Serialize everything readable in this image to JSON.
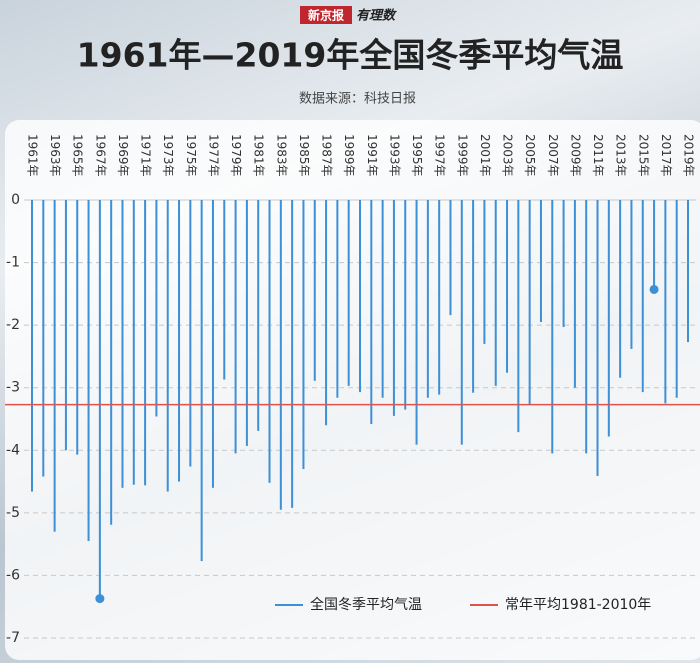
{
  "chart_data": {
    "type": "bar",
    "brand": "新京报",
    "brand_sub": "有理数",
    "title": "1961年—2019年全国冬季平均气温",
    "subtitle": "数据来源：科技日报",
    "categories": [
      "1961年",
      null,
      "1963年",
      null,
      "1965年",
      null,
      "1967年",
      null,
      "1969年",
      null,
      "1971年",
      null,
      "1973年",
      null,
      "1975年",
      null,
      "1977年",
      null,
      "1979年",
      null,
      "1981年",
      null,
      "1983年",
      null,
      "1985年",
      null,
      "1987年",
      null,
      "1989年",
      null,
      "1991年",
      null,
      "1993年",
      null,
      "1995年",
      null,
      "1997年",
      null,
      "1999年",
      null,
      "2001年",
      null,
      "2003年",
      null,
      "2005年",
      null,
      "2007年",
      null,
      "2009年",
      null,
      "2011年",
      null,
      "2013年",
      null,
      "2015年",
      null,
      "2017年",
      null,
      "2019年"
    ],
    "series": [
      {
        "name": "全国冬季平均气温",
        "color": "#3d8fd6",
        "values": [
          -4.66,
          -4.42,
          -5.3,
          -4.0,
          -4.07,
          -5.45,
          -6.37,
          -5.19,
          -4.6,
          -4.55,
          -4.56,
          -3.46,
          -4.66,
          -4.5,
          -4.26,
          -5.77,
          -4.6,
          -2.87,
          -4.05,
          -3.93,
          -3.69,
          -4.52,
          -4.95,
          -4.92,
          -4.3,
          -2.89,
          -3.6,
          -3.16,
          -2.97,
          -3.07,
          -3.58,
          -3.16,
          -3.45,
          -3.35,
          -3.91,
          -3.16,
          -3.11,
          -1.84,
          -3.91,
          -3.08,
          -2.3,
          -2.97,
          -2.76,
          -3.71,
          -3.26,
          -1.95,
          -4.05,
          -2.03,
          -3.0,
          -4.05,
          -4.41,
          -3.78,
          -2.84,
          -2.38,
          -3.07,
          -1.43,
          -3.25,
          -3.16,
          -2.27
        ]
      }
    ],
    "reference_line": {
      "name": "常年平均1981-2010年",
      "value": -3.27,
      "color": "#e0524a"
    },
    "ylim": [
      -7,
      0
    ],
    "yticks": [
      0,
      -1,
      -2,
      -3,
      -4,
      -5,
      -6,
      -7
    ],
    "grid": true
  }
}
